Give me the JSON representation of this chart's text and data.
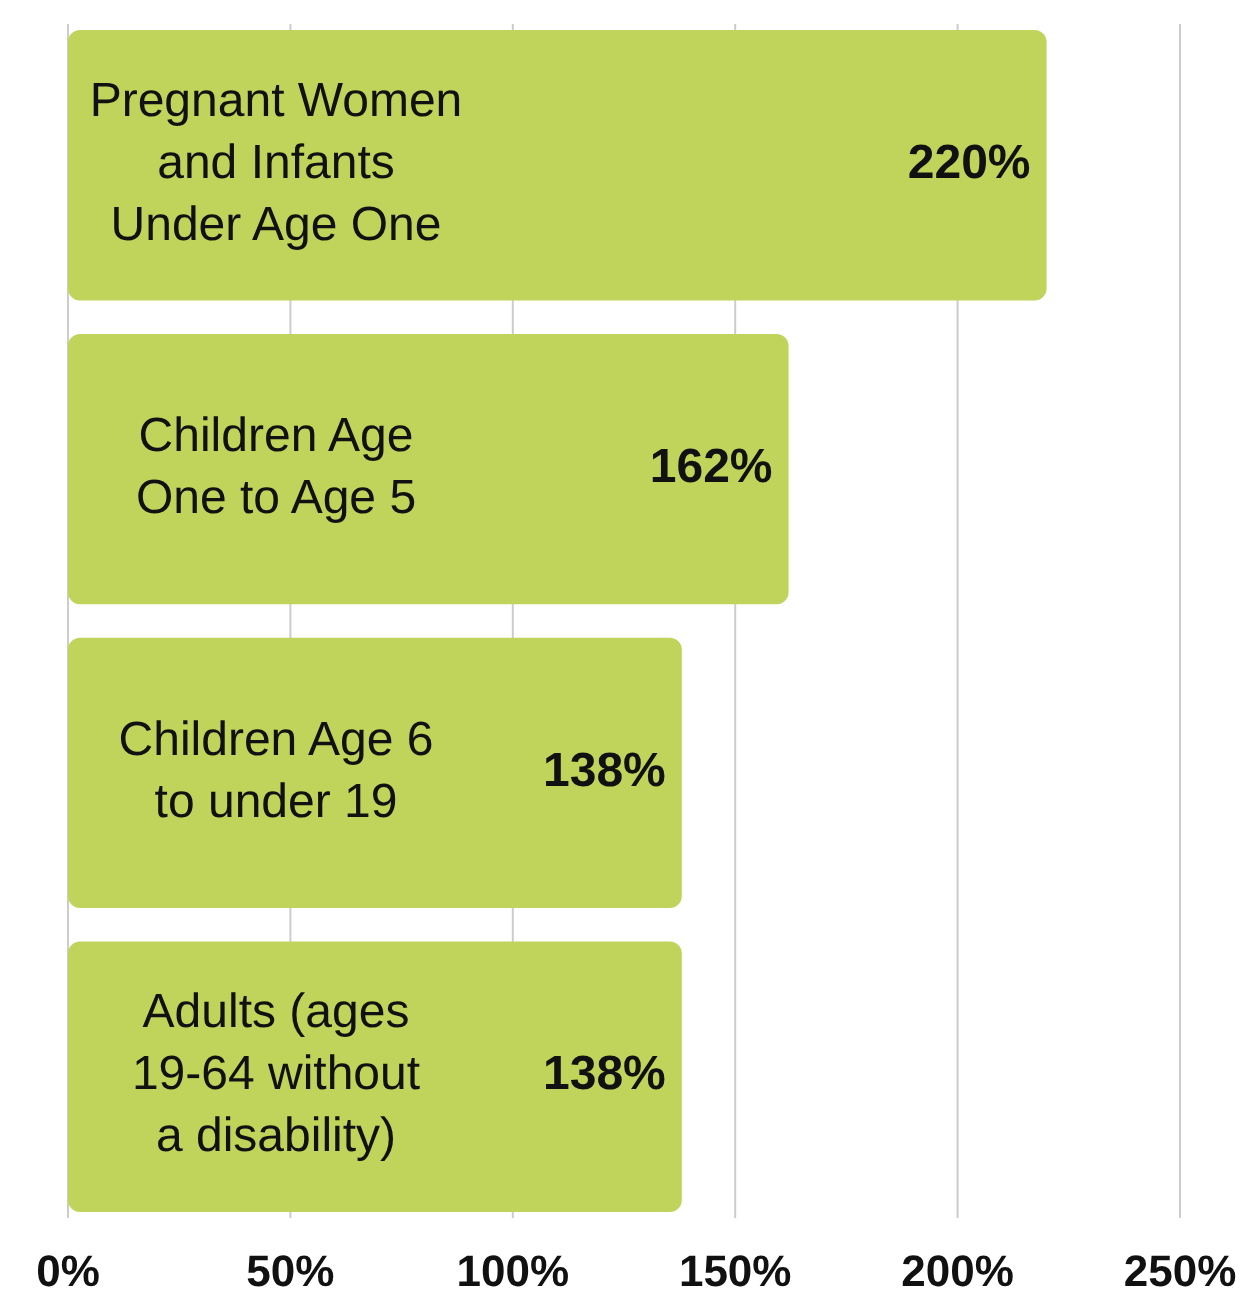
{
  "chart_data": {
    "type": "bar",
    "orientation": "horizontal",
    "categories": [
      "Pregnant Women and Infants Under Age One",
      "Children Age One to Age 5",
      "Children Age 6 to under 19",
      "Adults (ages 19-64 without a disability)"
    ],
    "values": [
      220,
      162,
      138,
      138
    ],
    "value_labels": [
      "220%",
      "162%",
      "138%",
      "138%"
    ],
    "color": "#c0d35a",
    "xlim": [
      0,
      250
    ],
    "xticks": [
      {
        "value": 0,
        "label": "0%"
      },
      {
        "value": 50,
        "label": "50%"
      },
      {
        "value": 100,
        "label": "100%"
      },
      {
        "value": 150,
        "label": "150%"
      },
      {
        "value": 200,
        "label": "200%"
      },
      {
        "value": 250,
        "label": "250%"
      }
    ],
    "grid": "x"
  }
}
